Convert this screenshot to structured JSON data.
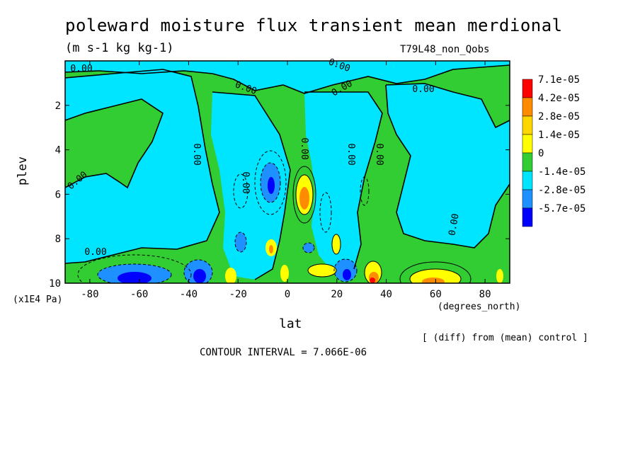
{
  "header": {
    "title": "poleward moisture flux transient mean merdional",
    "units": "(m s-1 kg kg-1)",
    "experiment": "T79L48_non_Qobs"
  },
  "footer": {
    "diff_note": "[ (diff) from (mean) control ]",
    "contour_interval": "CONTOUR INTERVAL = 7.066E-06"
  },
  "chart_data": {
    "type": "contour",
    "title": "poleward moisture flux transient mean merdional",
    "xlabel": "lat",
    "x_units": "(degrees_north)",
    "ylabel": "plev",
    "y_units": "(x1E4 Pa)",
    "xlim": [
      -90,
      90
    ],
    "ylim": [
      10,
      0
    ],
    "x_ticks": [
      -80,
      -60,
      -40,
      -20,
      0,
      20,
      40,
      60,
      80
    ],
    "y_ticks": [
      2,
      4,
      6,
      8,
      10
    ],
    "contour_interval": 7.066e-06,
    "colorbar": {
      "levels": [
        "7.1e-05",
        "4.2e-05",
        "2.8e-05",
        "1.4e-05",
        "0",
        "-1.4e-05",
        "-2.8e-05",
        "-5.7e-05"
      ],
      "colors": [
        "#ff0000",
        "#ff8c00",
        "#ffd700",
        "#ffff00",
        "#32cd32",
        "#00e5ff",
        "#1e90ff",
        "#0000ff"
      ]
    },
    "zero_contour_labels": [
      "0.00",
      "0.00",
      "0.00",
      "0.00",
      "0.00",
      "0.00",
      "0.00",
      "0.00",
      "0.00",
      "0.00",
      "0.00",
      "0.00",
      "0.00"
    ],
    "features": [
      {
        "lat": -60,
        "plev": 9.6,
        "sign": "negative"
      },
      {
        "lat": -37,
        "plev": 9.5,
        "sign": "negative"
      },
      {
        "lat": -7,
        "plev": 5.3,
        "sign": "negative"
      },
      {
        "lat": 7,
        "plev": 6.0,
        "sign": "positive"
      },
      {
        "lat": -7,
        "plev": 8.4,
        "sign": "positive"
      },
      {
        "lat": 32,
        "plev": 9.8,
        "sign": "positive"
      },
      {
        "lat": 58,
        "plev": 9.8,
        "sign": "positive"
      },
      {
        "lat": 12,
        "plev": 9.5,
        "sign": "positive"
      }
    ]
  }
}
